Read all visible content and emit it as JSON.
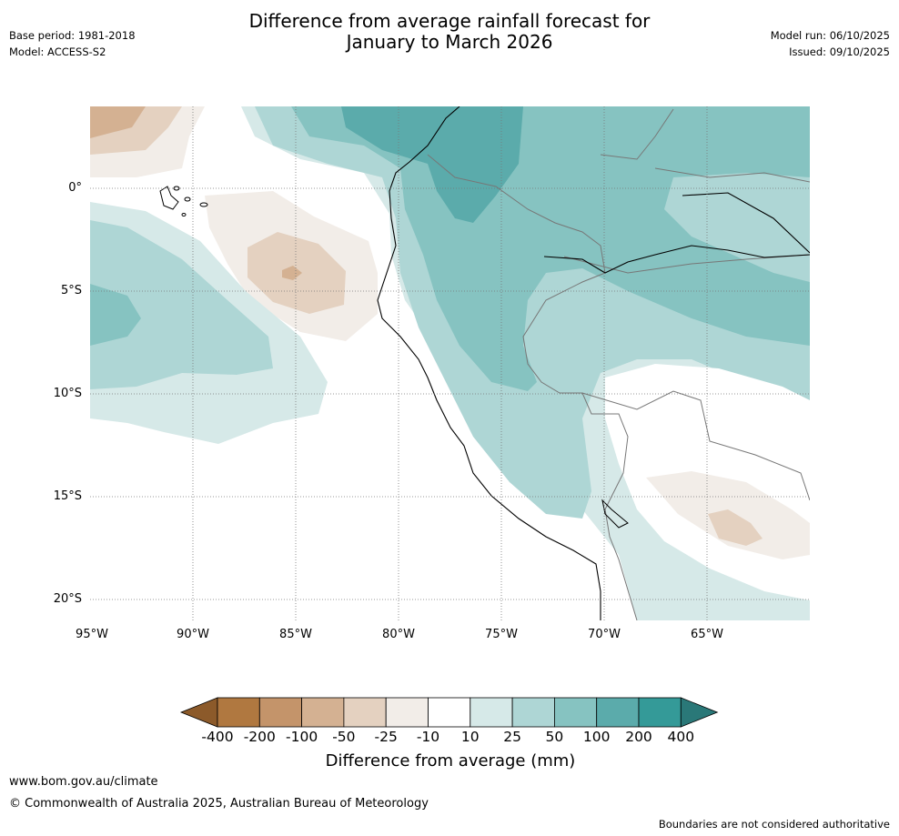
{
  "header": {
    "base_period": "Base period: 1981-2018",
    "model": "Model: ACCESS-S2",
    "title_line1": "Difference from average rainfall forecast for",
    "title_line2": "January to March 2026",
    "model_run": "Model run: 06/10/2025",
    "issued": "Issued: 09/10/2025"
  },
  "map": {
    "lat_labels": [
      "0°",
      "5°S",
      "10°S",
      "15°S",
      "20°S"
    ],
    "lon_labels": [
      "95°W",
      "90°W",
      "85°W",
      "80°W",
      "75°W",
      "70°W",
      "65°W"
    ]
  },
  "colorbar": {
    "title": "Difference from average (mm)",
    "tick_labels": [
      "-400",
      "-200",
      "-100",
      "-50",
      "-25",
      "-10",
      "10",
      "25",
      "50",
      "100",
      "200",
      "400"
    ],
    "colors": [
      "#8c5a2a",
      "#b07840",
      "#c4946a",
      "#d4b192",
      "#e4d1c0",
      "#f2ede8",
      "#ffffff",
      "#d6e9e8",
      "#aed6d5",
      "#86c3c1",
      "#5babab",
      "#349a98",
      "#2a7878"
    ]
  },
  "footer": {
    "website": "www.bom.gov.au/climate",
    "copyright": "© Commonwealth of Australia 2025, Australian Bureau of Meteorology",
    "disclaimer": "Boundaries are not considered authoritative"
  }
}
